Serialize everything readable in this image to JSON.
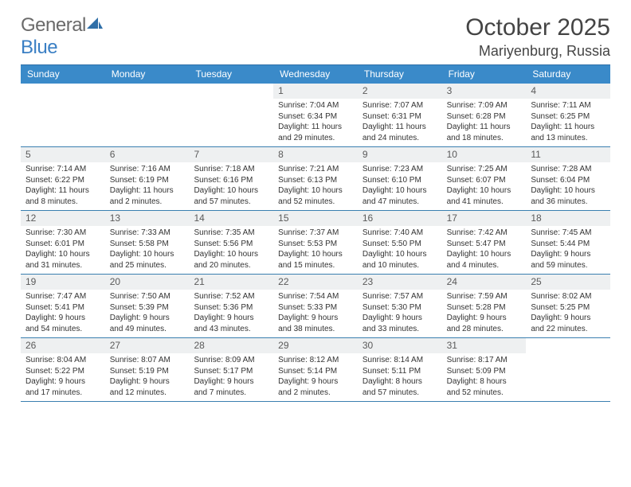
{
  "logo": {
    "word1": "General",
    "word2": "Blue",
    "icon_name": "triangle-sail-icon",
    "icon_color": "#2f6fa8"
  },
  "title": "October 2025",
  "location": "Mariyenburg, Russia",
  "colors": {
    "header_bg": "#3a8ac9",
    "rule": "#2f6fa8",
    "daynum_bg": "#eef0f1",
    "text": "#333333"
  },
  "typography": {
    "title_fontsize": 30,
    "location_fontsize": 18,
    "dow_fontsize": 12,
    "daynum_fontsize": 12,
    "info_fontsize": 10
  },
  "day_names": [
    "Sunday",
    "Monday",
    "Tuesday",
    "Wednesday",
    "Thursday",
    "Friday",
    "Saturday"
  ],
  "weeks": [
    [
      {
        "day": "",
        "sunrise": "",
        "sunset": "",
        "daylight": ""
      },
      {
        "day": "",
        "sunrise": "",
        "sunset": "",
        "daylight": ""
      },
      {
        "day": "",
        "sunrise": "",
        "sunset": "",
        "daylight": ""
      },
      {
        "day": "1",
        "sunrise": "Sunrise: 7:04 AM",
        "sunset": "Sunset: 6:34 PM",
        "daylight": "Daylight: 11 hours and 29 minutes."
      },
      {
        "day": "2",
        "sunrise": "Sunrise: 7:07 AM",
        "sunset": "Sunset: 6:31 PM",
        "daylight": "Daylight: 11 hours and 24 minutes."
      },
      {
        "day": "3",
        "sunrise": "Sunrise: 7:09 AM",
        "sunset": "Sunset: 6:28 PM",
        "daylight": "Daylight: 11 hours and 18 minutes."
      },
      {
        "day": "4",
        "sunrise": "Sunrise: 7:11 AM",
        "sunset": "Sunset: 6:25 PM",
        "daylight": "Daylight: 11 hours and 13 minutes."
      }
    ],
    [
      {
        "day": "5",
        "sunrise": "Sunrise: 7:14 AM",
        "sunset": "Sunset: 6:22 PM",
        "daylight": "Daylight: 11 hours and 8 minutes."
      },
      {
        "day": "6",
        "sunrise": "Sunrise: 7:16 AM",
        "sunset": "Sunset: 6:19 PM",
        "daylight": "Daylight: 11 hours and 2 minutes."
      },
      {
        "day": "7",
        "sunrise": "Sunrise: 7:18 AM",
        "sunset": "Sunset: 6:16 PM",
        "daylight": "Daylight: 10 hours and 57 minutes."
      },
      {
        "day": "8",
        "sunrise": "Sunrise: 7:21 AM",
        "sunset": "Sunset: 6:13 PM",
        "daylight": "Daylight: 10 hours and 52 minutes."
      },
      {
        "day": "9",
        "sunrise": "Sunrise: 7:23 AM",
        "sunset": "Sunset: 6:10 PM",
        "daylight": "Daylight: 10 hours and 47 minutes."
      },
      {
        "day": "10",
        "sunrise": "Sunrise: 7:25 AM",
        "sunset": "Sunset: 6:07 PM",
        "daylight": "Daylight: 10 hours and 41 minutes."
      },
      {
        "day": "11",
        "sunrise": "Sunrise: 7:28 AM",
        "sunset": "Sunset: 6:04 PM",
        "daylight": "Daylight: 10 hours and 36 minutes."
      }
    ],
    [
      {
        "day": "12",
        "sunrise": "Sunrise: 7:30 AM",
        "sunset": "Sunset: 6:01 PM",
        "daylight": "Daylight: 10 hours and 31 minutes."
      },
      {
        "day": "13",
        "sunrise": "Sunrise: 7:33 AM",
        "sunset": "Sunset: 5:58 PM",
        "daylight": "Daylight: 10 hours and 25 minutes."
      },
      {
        "day": "14",
        "sunrise": "Sunrise: 7:35 AM",
        "sunset": "Sunset: 5:56 PM",
        "daylight": "Daylight: 10 hours and 20 minutes."
      },
      {
        "day": "15",
        "sunrise": "Sunrise: 7:37 AM",
        "sunset": "Sunset: 5:53 PM",
        "daylight": "Daylight: 10 hours and 15 minutes."
      },
      {
        "day": "16",
        "sunrise": "Sunrise: 7:40 AM",
        "sunset": "Sunset: 5:50 PM",
        "daylight": "Daylight: 10 hours and 10 minutes."
      },
      {
        "day": "17",
        "sunrise": "Sunrise: 7:42 AM",
        "sunset": "Sunset: 5:47 PM",
        "daylight": "Daylight: 10 hours and 4 minutes."
      },
      {
        "day": "18",
        "sunrise": "Sunrise: 7:45 AM",
        "sunset": "Sunset: 5:44 PM",
        "daylight": "Daylight: 9 hours and 59 minutes."
      }
    ],
    [
      {
        "day": "19",
        "sunrise": "Sunrise: 7:47 AM",
        "sunset": "Sunset: 5:41 PM",
        "daylight": "Daylight: 9 hours and 54 minutes."
      },
      {
        "day": "20",
        "sunrise": "Sunrise: 7:50 AM",
        "sunset": "Sunset: 5:39 PM",
        "daylight": "Daylight: 9 hours and 49 minutes."
      },
      {
        "day": "21",
        "sunrise": "Sunrise: 7:52 AM",
        "sunset": "Sunset: 5:36 PM",
        "daylight": "Daylight: 9 hours and 43 minutes."
      },
      {
        "day": "22",
        "sunrise": "Sunrise: 7:54 AM",
        "sunset": "Sunset: 5:33 PM",
        "daylight": "Daylight: 9 hours and 38 minutes."
      },
      {
        "day": "23",
        "sunrise": "Sunrise: 7:57 AM",
        "sunset": "Sunset: 5:30 PM",
        "daylight": "Daylight: 9 hours and 33 minutes."
      },
      {
        "day": "24",
        "sunrise": "Sunrise: 7:59 AM",
        "sunset": "Sunset: 5:28 PM",
        "daylight": "Daylight: 9 hours and 28 minutes."
      },
      {
        "day": "25",
        "sunrise": "Sunrise: 8:02 AM",
        "sunset": "Sunset: 5:25 PM",
        "daylight": "Daylight: 9 hours and 22 minutes."
      }
    ],
    [
      {
        "day": "26",
        "sunrise": "Sunrise: 8:04 AM",
        "sunset": "Sunset: 5:22 PM",
        "daylight": "Daylight: 9 hours and 17 minutes."
      },
      {
        "day": "27",
        "sunrise": "Sunrise: 8:07 AM",
        "sunset": "Sunset: 5:19 PM",
        "daylight": "Daylight: 9 hours and 12 minutes."
      },
      {
        "day": "28",
        "sunrise": "Sunrise: 8:09 AM",
        "sunset": "Sunset: 5:17 PM",
        "daylight": "Daylight: 9 hours and 7 minutes."
      },
      {
        "day": "29",
        "sunrise": "Sunrise: 8:12 AM",
        "sunset": "Sunset: 5:14 PM",
        "daylight": "Daylight: 9 hours and 2 minutes."
      },
      {
        "day": "30",
        "sunrise": "Sunrise: 8:14 AM",
        "sunset": "Sunset: 5:11 PM",
        "daylight": "Daylight: 8 hours and 57 minutes."
      },
      {
        "day": "31",
        "sunrise": "Sunrise: 8:17 AM",
        "sunset": "Sunset: 5:09 PM",
        "daylight": "Daylight: 8 hours and 52 minutes."
      },
      {
        "day": "",
        "sunrise": "",
        "sunset": "",
        "daylight": ""
      }
    ]
  ]
}
